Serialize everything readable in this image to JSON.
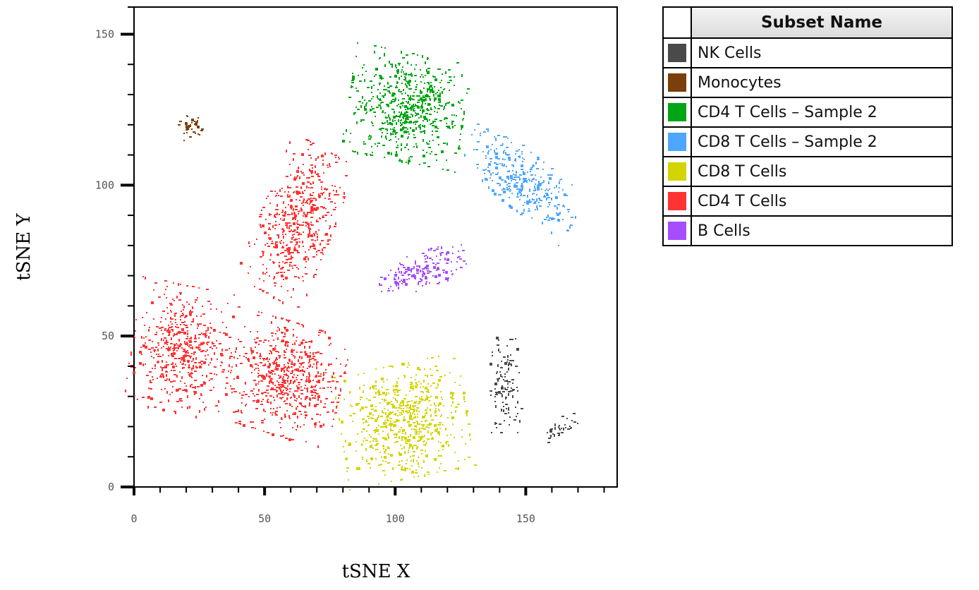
{
  "chart_data": {
    "type": "scatter",
    "title": "",
    "xlabel": "tSNE X",
    "ylabel": "tSNE Y",
    "xlim": [
      0,
      185
    ],
    "ylim": [
      0,
      159
    ],
    "x_ticks": [
      0,
      50,
      100,
      150
    ],
    "y_ticks": [
      0,
      50,
      100,
      150
    ],
    "x_minor_step": 10,
    "y_minor_step": 10,
    "grid": false,
    "legend_position": "right",
    "legend_header": "Subset Name",
    "series": [
      {
        "name": "NK Cells",
        "color": "#4a4a4a",
        "clusters": [
          {
            "cx": 142,
            "cy": 34,
            "sx": 2.8,
            "sy": 7.5,
            "n": 110,
            "rot": 0
          },
          {
            "cx": 163,
            "cy": 20,
            "sx": 3.2,
            "sy": 1.6,
            "n": 35,
            "rot": 25
          }
        ]
      },
      {
        "name": "Monocytes",
        "color": "#7a3f0a",
        "clusters": [
          {
            "cx": 21,
            "cy": 119,
            "sx": 2.2,
            "sy": 2.2,
            "n": 35,
            "rot": 20
          }
        ]
      },
      {
        "name": "CD4 T Cells – Sample 2",
        "color": "#00a614",
        "clusters": [
          {
            "cx": 104,
            "cy": 126,
            "sx": 10.5,
            "sy": 8.5,
            "n": 620,
            "rot": -10
          }
        ]
      },
      {
        "name": "CD8 T Cells – Sample 2",
        "color": "#4da6ff",
        "clusters": [
          {
            "cx": 148,
            "cy": 102,
            "sx": 11.5,
            "sy": 4.6,
            "n": 330,
            "rot": -35
          }
        ]
      },
      {
        "name": "CD8 T Cells",
        "color": "#d4d400",
        "clusters": [
          {
            "cx": 103,
            "cy": 22,
            "sx": 11.5,
            "sy": 9,
            "n": 640,
            "rot": 10
          }
        ]
      },
      {
        "name": "CD4 T Cells",
        "color": "#ff3333",
        "clusters": [
          {
            "cx": 62,
            "cy": 88,
            "sx": 6.5,
            "sy": 12.5,
            "n": 520,
            "rot": -25
          },
          {
            "cx": 18,
            "cy": 46,
            "sx": 9,
            "sy": 10,
            "n": 520,
            "rot": -10
          },
          {
            "cx": 58,
            "cy": 36,
            "sx": 10,
            "sy": 9,
            "n": 640,
            "rot": -15
          }
        ]
      },
      {
        "name": "B Cells",
        "color": "#a64dff",
        "clusters": [
          {
            "cx": 110,
            "cy": 72,
            "sx": 8,
            "sy": 2.8,
            "n": 170,
            "rot": 18
          }
        ]
      }
    ]
  }
}
